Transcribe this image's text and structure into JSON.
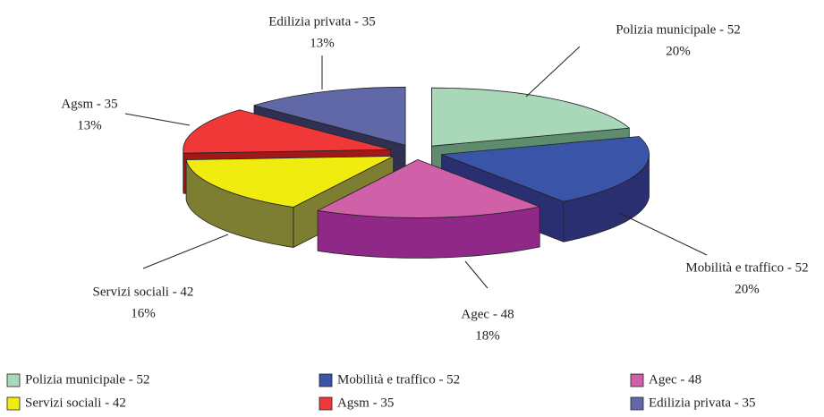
{
  "chart_data": {
    "type": "pie3d",
    "categories": [
      "Polizia municipale - 52",
      "Mobilità e traffico - 52",
      "Agec - 48",
      "Servizi sociali - 42",
      "Agsm - 35",
      "Edilizia privata - 35"
    ],
    "values": [
      20,
      20,
      18,
      16,
      13,
      13
    ],
    "value_labels": [
      "20%",
      "20%",
      "18%",
      "16%",
      "13%",
      "13%"
    ],
    "colors": [
      "#a8d8b8",
      "#3a55a8",
      "#d060a8",
      "#f0ec10",
      "#f03838",
      "#6068a8"
    ],
    "side_colors": [
      "#5e8c6e",
      "#2a2f72",
      "#902888",
      "#7e7e32",
      "#a01818",
      "#303052"
    ],
    "legend": "bottom"
  }
}
